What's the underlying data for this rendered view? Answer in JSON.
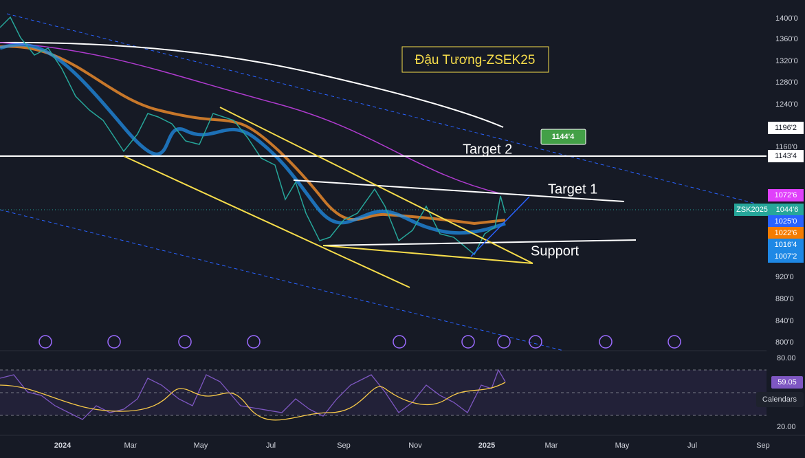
{
  "title": "Đậu Tương-ZSEK25",
  "annotations": {
    "target2": "Target 2",
    "target1": "Target 1",
    "support": "Support",
    "callout": "1144'4"
  },
  "price_axis": [
    "1400'0",
    "1360'0",
    "1320'0",
    "1280'0",
    "1240'0",
    "1160'0",
    "920'0",
    "880'0",
    "840'0",
    "800'0"
  ],
  "price_tags": {
    "t1196": "1196'2",
    "t1143": "1143'4",
    "t1072": "1072'6",
    "t1044": "1044'6",
    "t1025": "1025'0",
    "t1022": "1022'6",
    "t1016": "1016'4",
    "t1007": "1007'2"
  },
  "symbol_tag": "ZSK2025",
  "rsi_axis": [
    "80.00",
    "20.00"
  ],
  "rsi_tag": "59.05",
  "time_axis": [
    "2024",
    "Mar",
    "May",
    "Jul",
    "Sep",
    "Nov",
    "2025",
    "Mar",
    "May",
    "Jul",
    "Sep"
  ],
  "button": "Calendars"
}
